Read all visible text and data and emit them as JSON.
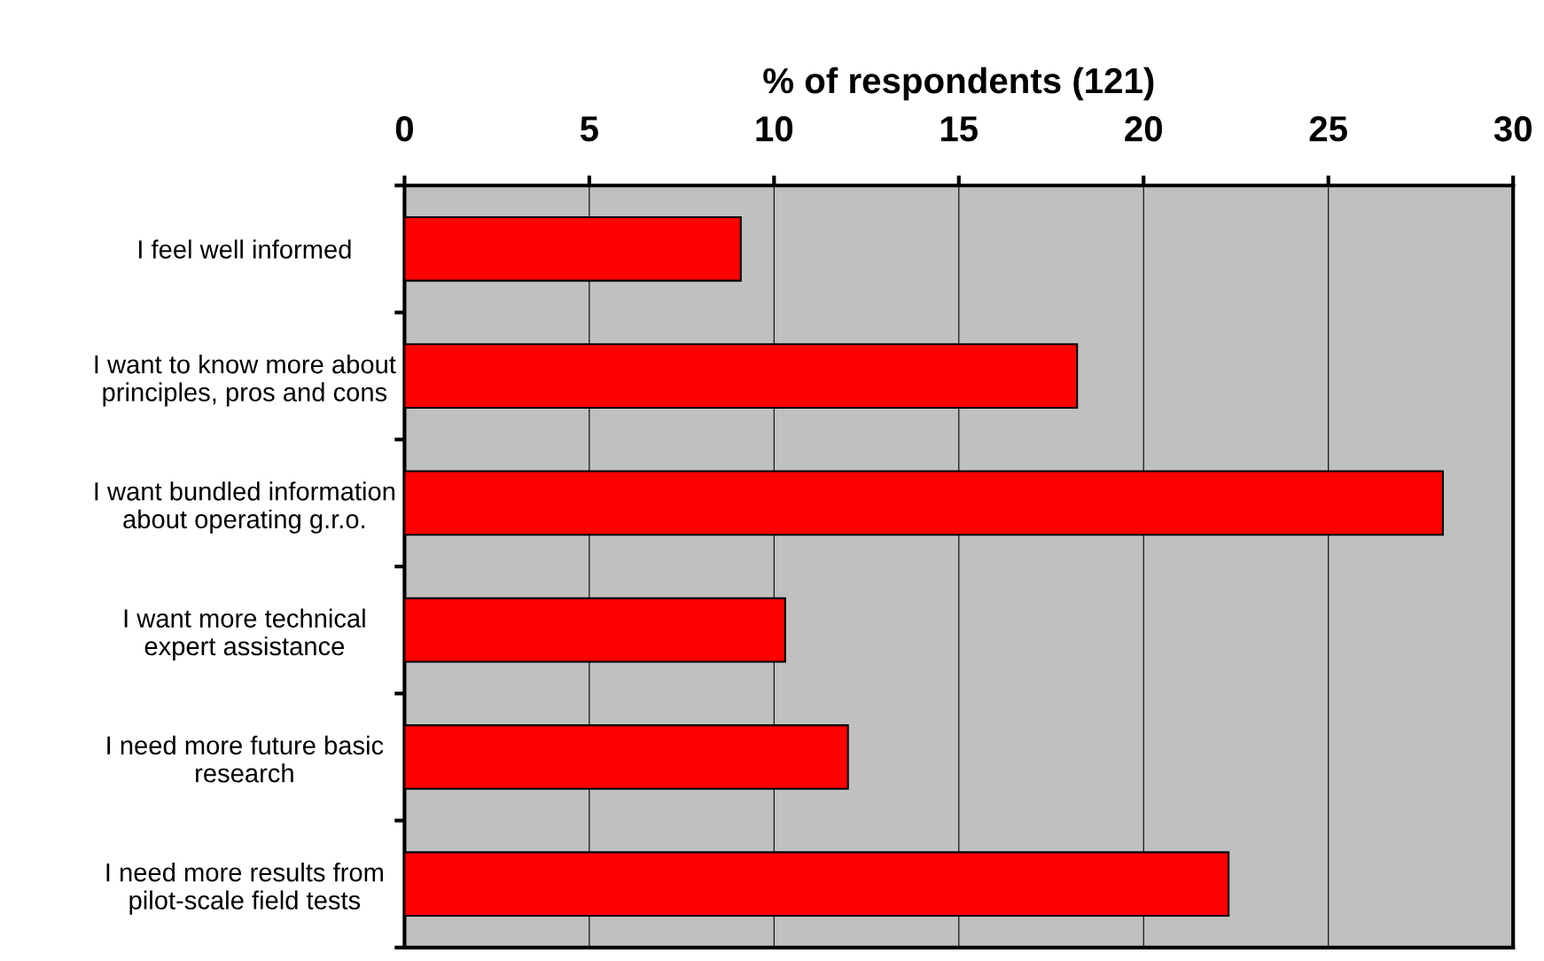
{
  "chart_data": {
    "type": "bar",
    "orientation": "horizontal",
    "xlabel": "% of respondents (121)",
    "categories": [
      "I feel well informed",
      "I want to know more about\nprinciples, pros and cons",
      "I want bundled information\nabout operating g.r.o.",
      "I want more technical\nexpert assistance",
      "I need more future basic\nresearch",
      "I need more results from\npilot-scale field tests"
    ],
    "values": [
      9.1,
      18.2,
      28.1,
      10.3,
      12.0,
      22.3
    ],
    "color": "#ff0000",
    "xlim": [
      0,
      30
    ],
    "xticks": [
      0,
      5,
      10,
      15,
      20,
      25,
      30
    ],
    "grid": "x",
    "legend": false
  }
}
